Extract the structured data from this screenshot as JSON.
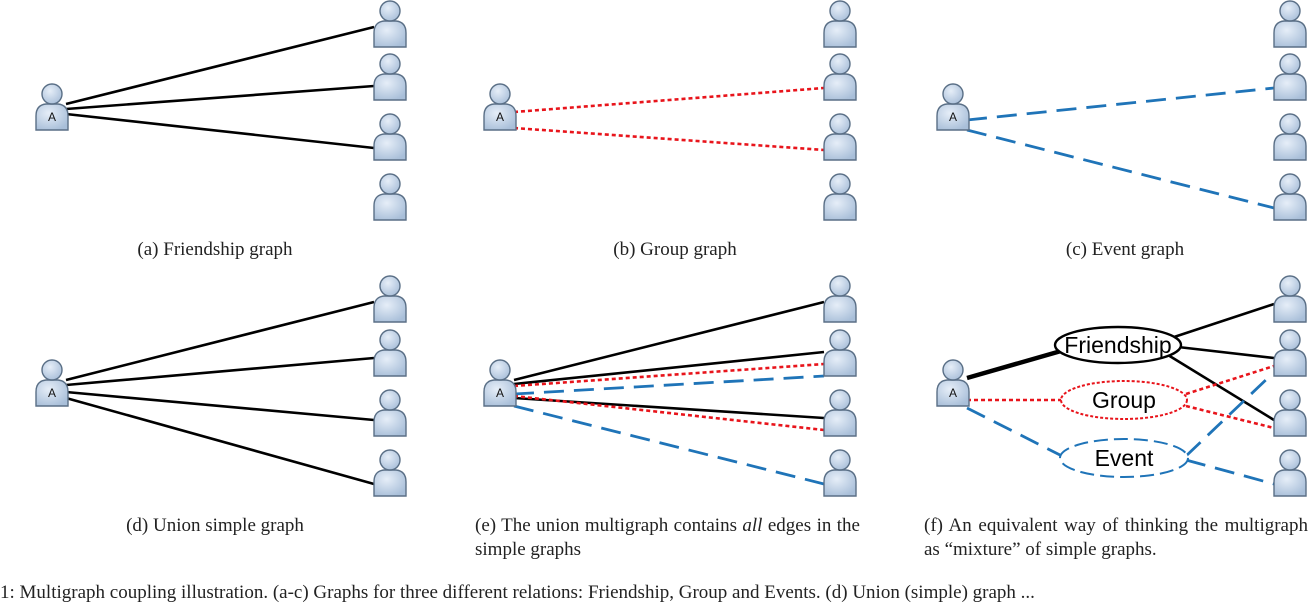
{
  "node_label": "A",
  "colors": {
    "friendship": "#000000",
    "group": "#e8141b",
    "event": "#1f74b8",
    "person_fill": "#b8cce4",
    "person_stroke": "#5a6f86"
  },
  "panels": [
    {
      "id": "a",
      "caption_prefix": "(a) Friendship graph"
    },
    {
      "id": "b",
      "caption_prefix": "(b) Group graph"
    },
    {
      "id": "c",
      "caption_prefix": "(c) Event graph"
    },
    {
      "id": "d",
      "caption_prefix": "(d) Union simple graph"
    },
    {
      "id": "e",
      "caption_prefix": "(e) The union multigraph contains ",
      "caption_em": "all",
      "caption_suffix": " edges in the simple graphs"
    },
    {
      "id": "f",
      "caption_prefix": "(f) An equivalent way of thinking the multigraph as “mixture” of simple graphs."
    }
  ],
  "bubbles": {
    "friendship": "Friendship",
    "group": "Group",
    "event": "Event"
  },
  "figure_caption_fragment": "1:  Multigraph  coupling illustration.  (a-c)  Graphs  for three different relations:  Friendship,  Group  and  Events.  (d)  Union (simple)  graph  ..."
}
